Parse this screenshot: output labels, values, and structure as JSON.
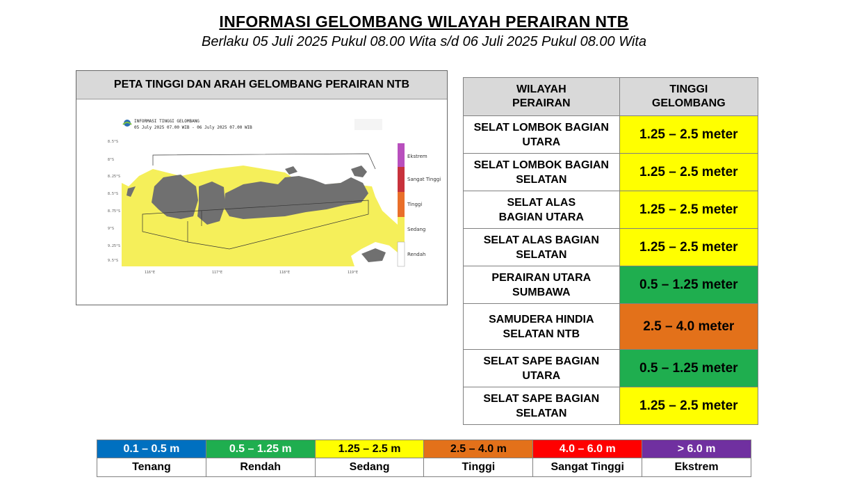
{
  "header": {
    "title": "INFORMASI GELOMBANG WILAYAH PERAIRAN NTB",
    "subtitle": "Berlaku 05 Juli 2025 Pukul 08.00 Wita s/d  06 Juli 2025 Pukul 08.00 Wita"
  },
  "map": {
    "panel_title": "PETA TINGGI DAN ARAH GELOMBANG PERAIRAN NTB",
    "inner_title": "INFORMASI TINGGI GELOMBANG",
    "inner_subtitle": "05 July 2025 07.00 WIB - 06 July 2025 07.00 WIB",
    "colorbar_labels": [
      "Ekstrem",
      "Sangat Tinggi",
      "Tinggi",
      "Sedang",
      "Rendah"
    ],
    "colors": {
      "sea_yellow": "#f5ef5a",
      "land": "#707070",
      "white_sea": "#ffffff"
    }
  },
  "table": {
    "headers": [
      "WILAYAH PERAIRAN",
      "TINGGI GELOMBANG"
    ],
    "rows": [
      {
        "region": "SELAT LOMBOK BAGIAN UTARA",
        "height": "1.25 – 2.5 meter",
        "color": "yellow"
      },
      {
        "region": "SELAT LOMBOK BAGIAN SELATAN",
        "height": "1.25 – 2.5 meter",
        "color": "yellow"
      },
      {
        "region": "SELAT ALAS BAGIAN UTARA",
        "height": "1.25 – 2.5 meter",
        "color": "yellow"
      },
      {
        "region": "SELAT ALAS BAGIAN SELATAN",
        "height": "1.25 – 2.5 meter",
        "color": "yellow"
      },
      {
        "region": "PERAIRAN UTARA SUMBAWA",
        "height": "0.5 – 1.25 meter",
        "color": "green"
      },
      {
        "region": "SAMUDERA HINDIA SELATAN NTB",
        "height": "2.5 – 4.0 meter",
        "color": "orange"
      },
      {
        "region": "SELAT SAPE BAGIAN UTARA",
        "height": "0.5 – 1.25 meter",
        "color": "green"
      },
      {
        "region": "SELAT SAPE BAGIAN SELATAN",
        "height": "1.25 – 2.5 meter",
        "color": "yellow"
      }
    ]
  },
  "legend": [
    {
      "range": "0.1 – 0.5 m",
      "name": "Tenang",
      "color": "#0070c0"
    },
    {
      "range": "0.5 – 1.25 m",
      "name": "Rendah",
      "color": "#1fae4f"
    },
    {
      "range": "1.25 – 2.5 m",
      "name": "Sedang",
      "color": "#ffff00"
    },
    {
      "range": "2.5 – 4.0 m",
      "name": "Tinggi",
      "color": "#e3711a"
    },
    {
      "range": "4.0 – 6.0 m",
      "name": "Sangat Tinggi",
      "color": "#ff0000"
    },
    {
      "range": "> 6.0 m",
      "name": "Ekstrem",
      "color": "#7030a0"
    }
  ]
}
